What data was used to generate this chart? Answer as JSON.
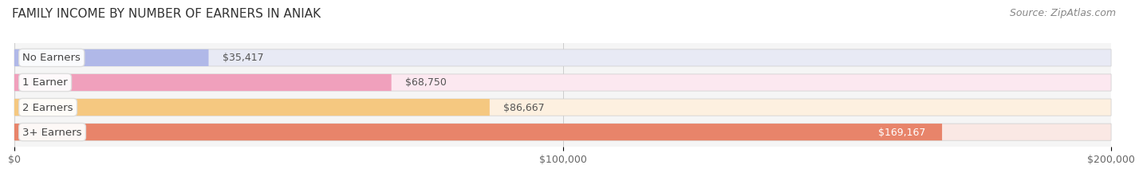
{
  "title": "FAMILY INCOME BY NUMBER OF EARNERS IN ANIAK",
  "source": "Source: ZipAtlas.com",
  "categories": [
    "No Earners",
    "1 Earner",
    "2 Earners",
    "3+ Earners"
  ],
  "values": [
    35417,
    68750,
    86667,
    169167
  ],
  "bar_colors": [
    "#b0b8e8",
    "#f0a0bc",
    "#f5c880",
    "#e8846a"
  ],
  "bar_bg_colors": [
    "#e8eaf5",
    "#fce8f0",
    "#fdf0e0",
    "#fae8e4"
  ],
  "value_labels": [
    "$35,417",
    "$68,750",
    "$86,667",
    "$169,167"
  ],
  "value_label_color_last": "#ffffff",
  "xlim": [
    0,
    200000
  ],
  "xticks": [
    0,
    100000,
    200000
  ],
  "xtick_labels": [
    "$0",
    "$100,000",
    "$200,000"
  ],
  "background_color": "#ffffff",
  "plot_bg_color": "#f5f5f5",
  "title_fontsize": 11,
  "source_fontsize": 9,
  "label_fontsize": 9.5,
  "value_fontsize": 9,
  "tick_fontsize": 9
}
